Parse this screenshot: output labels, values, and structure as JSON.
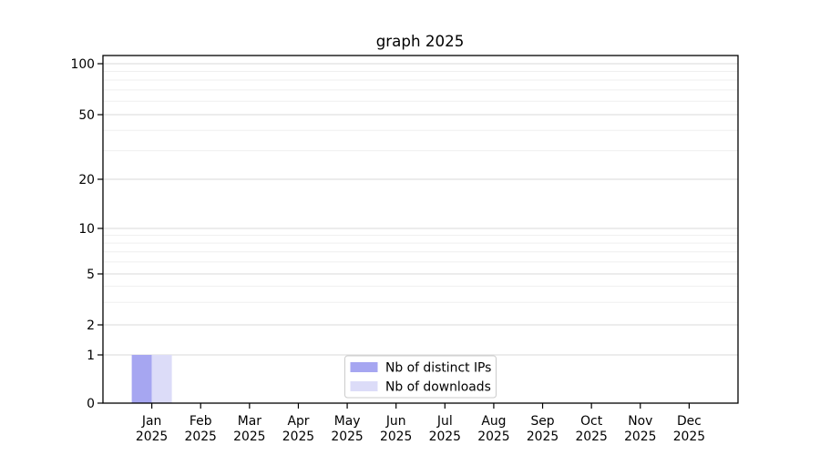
{
  "chart_data": {
    "type": "bar",
    "title": "graph 2025",
    "months": [
      "Jan",
      "Feb",
      "Mar",
      "Apr",
      "May",
      "Jun",
      "Jul",
      "Aug",
      "Sep",
      "Oct",
      "Nov",
      "Dec"
    ],
    "year_label": "2025",
    "series": [
      {
        "name": "Nb of distinct IPs",
        "color": "#a6a6f1",
        "values": [
          1,
          0,
          0,
          0,
          0,
          0,
          0,
          0,
          0,
          0,
          0,
          0
        ]
      },
      {
        "name": "Nb of downloads",
        "color": "#dcdcf8",
        "values": [
          1,
          0,
          0,
          0,
          0,
          0,
          0,
          0,
          0,
          0,
          0,
          0
        ]
      }
    ],
    "y_axis": {
      "scale": "log-like",
      "range": [
        0,
        100
      ],
      "ticks": [
        0,
        1,
        2,
        5,
        10,
        20,
        50,
        100
      ],
      "minor_gridlines": [
        3,
        4,
        6,
        7,
        8,
        9,
        30,
        40,
        60,
        70,
        80,
        90
      ]
    },
    "grid": "on",
    "legend": {
      "position": "bottom-center"
    }
  },
  "colors": {
    "background": "#ffffff",
    "axis": "#000000",
    "major_grid": "#d9d9d9",
    "minor_grid": "#efefef",
    "legend_border": "#cccccc",
    "legend_background": "#ffffff"
  }
}
